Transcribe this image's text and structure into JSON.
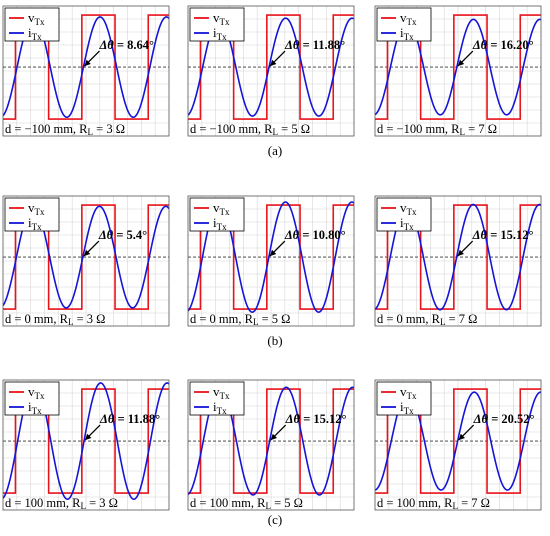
{
  "legend": {
    "voltage_label": "v",
    "voltage_sub": "Tx",
    "current_label": "i",
    "current_sub": "Tx"
  },
  "colors": {
    "voltage": "#e8141b",
    "current": "#1515d8",
    "grid": "#d6d6d6",
    "frame": "#555555",
    "zero_line": "#333333"
  },
  "delta_symbol": "Δθ = ",
  "degree_unit": "°",
  "rows": [
    {
      "label": "(a)"
    },
    {
      "label": "(b)"
    },
    {
      "label": "(c)"
    }
  ],
  "chart_data": [
    {
      "type": "line",
      "row": 0,
      "distance": "d = −100 mm",
      "load": "R",
      "load_sub": "L",
      "load_value": "= 3 Ω",
      "delta_theta": "8.64",
      "phase_shift_deg": 8.64,
      "current_amplitude": 0.82
    },
    {
      "type": "line",
      "row": 0,
      "distance": "d = −100 mm",
      "load": "R",
      "load_sub": "L",
      "load_value": "= 5 Ω",
      "delta_theta": "11.88",
      "phase_shift_deg": 11.88,
      "current_amplitude": 0.8
    },
    {
      "type": "line",
      "row": 0,
      "distance": "d = −100 mm",
      "load": "R",
      "load_sub": "L",
      "load_value": "= 7 Ω",
      "delta_theta": "16.20",
      "phase_shift_deg": 16.2,
      "current_amplitude": 0.78
    },
    {
      "type": "line",
      "row": 1,
      "distance": "d = 0 mm",
      "load": "R",
      "load_sub": "L",
      "load_value": "= 3 Ω",
      "delta_theta": "5.4",
      "phase_shift_deg": 5.4,
      "current_amplitude": 0.83
    },
    {
      "type": "line",
      "row": 1,
      "distance": "d = 0 mm",
      "load": "R",
      "load_sub": "L",
      "load_value": "= 5 Ω",
      "delta_theta": "10.80",
      "phase_shift_deg": 10.8,
      "current_amplitude": 0.9
    },
    {
      "type": "line",
      "row": 1,
      "distance": "d = 0 mm",
      "load": "R",
      "load_sub": "L",
      "load_value": "= 7 Ω",
      "delta_theta": "15.12",
      "phase_shift_deg": 15.12,
      "current_amplitude": 0.86
    },
    {
      "type": "line",
      "row": 2,
      "distance": "d = 100 mm",
      "load": "R",
      "load_sub": "L",
      "load_value": "= 3 Ω",
      "delta_theta": "11.88",
      "phase_shift_deg": 11.88,
      "current_amplitude": 0.95
    },
    {
      "type": "line",
      "row": 2,
      "distance": "d = 100 mm",
      "load": "R",
      "load_sub": "L",
      "load_value": "= 5 Ω",
      "delta_theta": "15.12",
      "phase_shift_deg": 15.12,
      "current_amplitude": 0.88
    },
    {
      "type": "line",
      "row": 2,
      "distance": "d = 100 mm",
      "load": "R",
      "load_sub": "L",
      "load_value": "= 7 Ω",
      "delta_theta": "20.52",
      "phase_shift_deg": 20.52,
      "current_amplitude": 0.8
    }
  ]
}
